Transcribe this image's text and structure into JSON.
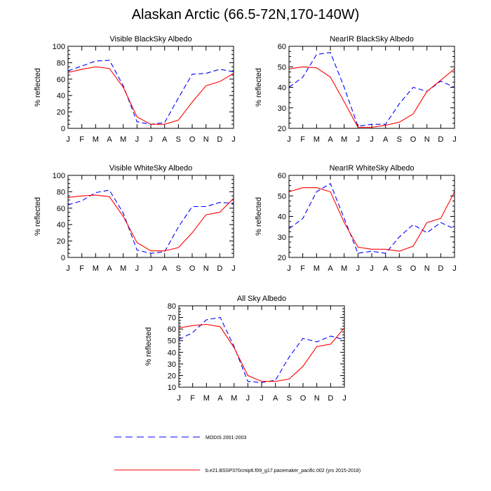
{
  "title": "Alaskan Arctic (66.5-72N,170-140W)",
  "months": [
    "J",
    "F",
    "M",
    "A",
    "M",
    "J",
    "J",
    "A",
    "S",
    "O",
    "N",
    "D",
    "J"
  ],
  "colors": {
    "modis": "#0000ff",
    "model": "#ff0000"
  },
  "legend": {
    "modis": "MODIS 2001-2003",
    "model": "b.e21.BSSP370cmip6.f09_g17.pacemaker_pacific.002 (yrs 2015-2018)"
  },
  "chart_data": [
    {
      "type": "line",
      "title": "Visible BlackSky Albedo",
      "ylabel": "% reflected",
      "ylim": [
        0,
        100
      ],
      "yticks": [
        0,
        20,
        40,
        60,
        80,
        100
      ],
      "series": [
        {
          "name": "MODIS 2001-2003",
          "style": "dashed",
          "values": [
            70,
            76,
            82,
            83,
            52,
            8,
            5,
            7,
            37,
            66,
            67,
            72,
            69
          ]
        },
        {
          "name": "b.e21.BSSP370cmip6.f09_g17.pacemaker_pacific.002 (yrs 2015-2018)",
          "style": "solid",
          "values": [
            68,
            72,
            75,
            73,
            50,
            14,
            5,
            5,
            10,
            32,
            52,
            57,
            67
          ]
        }
      ]
    },
    {
      "type": "line",
      "title": "NearIR BlackSky Albedo",
      "ylabel": "% reflected",
      "ylim": [
        20,
        60
      ],
      "yticks": [
        20,
        30,
        40,
        50,
        60
      ],
      "series": [
        {
          "name": "MODIS 2001-2003",
          "style": "dashed",
          "values": [
            40,
            45,
            56,
            57,
            40,
            21,
            22,
            22,
            32,
            40,
            38,
            43,
            40
          ]
        },
        {
          "name": "b.e21.BSSP370cmip6.f09_g17.pacemaker_pacific.002 (yrs 2015-2018)",
          "style": "solid",
          "values": [
            49,
            50,
            49.5,
            45,
            33,
            20.5,
            20.5,
            21.5,
            23,
            27,
            38,
            43.5,
            49
          ]
        }
      ]
    },
    {
      "type": "line",
      "title": "Visible WhiteSky Albedo",
      "ylabel": "% reflected",
      "ylim": [
        0,
        100
      ],
      "yticks": [
        0,
        20,
        40,
        60,
        80,
        100
      ],
      "series": [
        {
          "name": "MODIS 2001-2003",
          "style": "dashed",
          "values": [
            64,
            69,
            79,
            82,
            54,
            9,
            5,
            7,
            37,
            62,
            62,
            67,
            66
          ]
        },
        {
          "name": "b.e21.BSSP370cmip6.f09_g17.pacemaker_pacific.002 (yrs 2015-2018)",
          "style": "solid",
          "values": [
            73,
            75,
            76,
            74,
            50,
            18,
            8,
            8,
            12,
            30,
            52,
            55,
            72
          ]
        }
      ]
    },
    {
      "type": "line",
      "title": "NearIR WhiteSky Albedo",
      "ylabel": "% reflected",
      "ylim": [
        20,
        60
      ],
      "yticks": [
        20,
        30,
        40,
        50,
        60
      ],
      "series": [
        {
          "name": "MODIS 2001-2003",
          "style": "dashed",
          "values": [
            34,
            39,
            52,
            56,
            39,
            22,
            23,
            22,
            30,
            36,
            32,
            37,
            34
          ]
        },
        {
          "name": "b.e21.BSSP370cmip6.f09_g17.pacemaker_pacific.002 (yrs 2015-2018)",
          "style": "solid",
          "values": [
            52,
            54,
            54,
            52,
            37,
            25,
            24,
            24,
            23,
            25.5,
            37,
            39,
            52
          ]
        }
      ]
    },
    {
      "type": "line",
      "title": "All Sky Albedo",
      "ylabel": "% reflected",
      "ylim": [
        10,
        80
      ],
      "yticks": [
        10,
        20,
        30,
        40,
        50,
        60,
        70,
        80
      ],
      "series": [
        {
          "name": "MODIS 2001-2003",
          "style": "dashed",
          "values": [
            51,
            57,
            68,
            70,
            45,
            15,
            14,
            16,
            36,
            52,
            49,
            54,
            51
          ]
        },
        {
          "name": "b.e21.BSSP370cmip6.f09_g17.pacemaker_pacific.002 (yrs 2015-2018)",
          "style": "solid",
          "values": [
            61,
            63,
            64,
            62,
            44,
            20,
            15,
            15,
            17,
            28,
            45,
            47,
            61
          ]
        }
      ]
    }
  ]
}
